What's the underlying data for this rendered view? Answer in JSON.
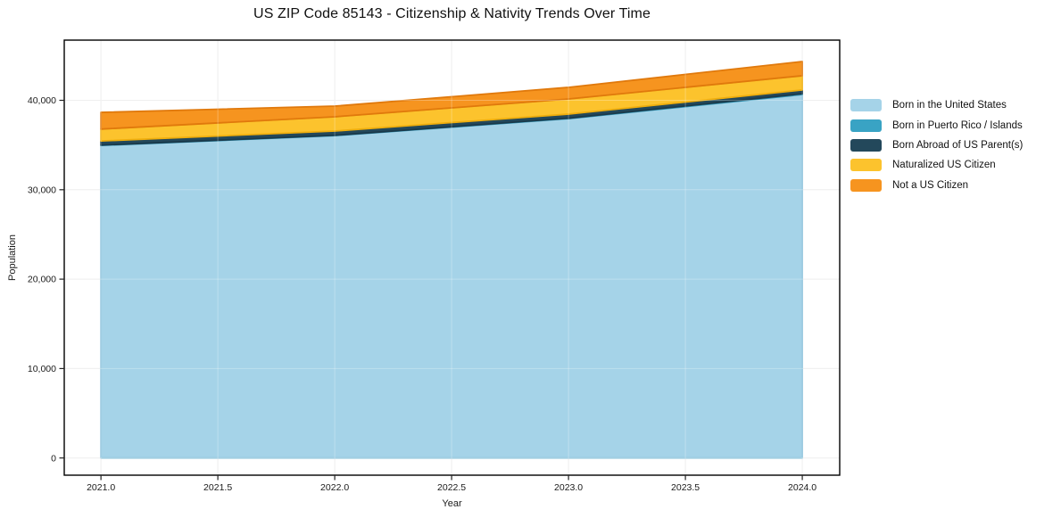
{
  "chart_data": {
    "type": "area",
    "stacked": true,
    "title": "US ZIP Code 85143 - Citizenship & Nativity Trends Over Time",
    "xlabel": "Year",
    "ylabel": "Population",
    "x": [
      2021,
      2022,
      2023,
      2024
    ],
    "series": [
      {
        "name": "Born in the United States",
        "color": "#A5D3E8",
        "edge": "#8CC3DC",
        "values": [
          34950,
          36050,
          37950,
          40650
        ]
      },
      {
        "name": "Born in Puerto Rico / Islands",
        "color": "#39A3C4",
        "edge": "#2E93B4",
        "values": [
          40,
          40,
          50,
          90
        ]
      },
      {
        "name": "Born Abroad of US Parent(s)",
        "color": "#23485B",
        "edge": "#1A3A4B",
        "values": [
          460,
          470,
          460,
          420
        ]
      },
      {
        "name": "Naturalized US Citizen",
        "color": "#FCC32D",
        "edge": "#EFAE0D",
        "values": [
          1330,
          1600,
          1690,
          1590
        ]
      },
      {
        "name": "Not a US Citizen",
        "color": "#F6941F",
        "edge": "#E0790C",
        "values": [
          1870,
          1190,
          1300,
          1590
        ]
      }
    ],
    "totals": [
      38650,
      39350,
      41450,
      44340
    ],
    "xlim": [
      2020.843,
      2024.16
    ],
    "ylim": [
      -1924,
      46731
    ],
    "xticks": {
      "values": [
        2021.0,
        2021.5,
        2022.0,
        2022.5,
        2023.0,
        2023.5,
        2024.0
      ],
      "labels": [
        "2021.0",
        "2021.5",
        "2022.0",
        "2022.5",
        "2023.0",
        "2023.5",
        "2024.0"
      ]
    },
    "yticks": {
      "values": [
        0,
        10000,
        20000,
        30000,
        40000
      ],
      "labels": [
        "0",
        "10,000",
        "20,000",
        "30,000",
        "40,000"
      ]
    },
    "grid": true,
    "legend_position": "right of plot, vertically centered"
  },
  "style_colors": {
    "figure_background": "#ffffff",
    "plot_background": "#ffffff",
    "gridline": "#e9e9e9",
    "grid_overlay_on_areas": "rgba(255,255,255,0.28)",
    "frame": "#000000",
    "tick": "#222222",
    "text": "#1a1a1a"
  }
}
